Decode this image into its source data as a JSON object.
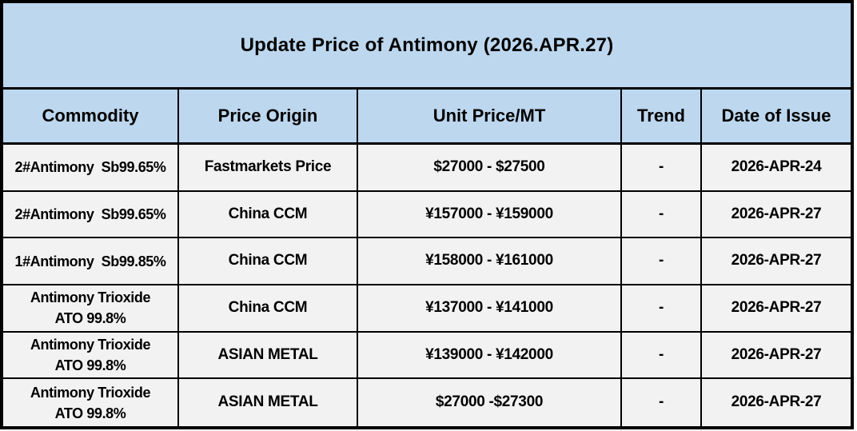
{
  "page_title": "Update Price of Antimony (2026.APR.27)",
  "colors": {
    "header_bg": "#BDD7EE",
    "row_bg": "#F2F2F2",
    "border": "#000000",
    "text": "#000000",
    "page_bg": "#FFFFFF"
  },
  "table": {
    "columns": [
      {
        "label": "Commodity"
      },
      {
        "label": "Price Origin"
      },
      {
        "label": "Unit Price/MT"
      },
      {
        "label": "Trend"
      },
      {
        "label": "Date of Issue"
      }
    ],
    "rows": [
      {
        "commodity": "2#Antimony  Sb99.65%",
        "origin": "Fastmarkets Price",
        "price": "$27000 - $27500",
        "trend": "-",
        "date": "2026-APR-24"
      },
      {
        "commodity": "2#Antimony  Sb99.65%",
        "origin": "China CCM",
        "price": "¥157000 - ¥159000",
        "trend": "-",
        "date": "2026-APR-27"
      },
      {
        "commodity": "1#Antimony  Sb99.85%",
        "origin": "China CCM",
        "price": "¥158000 - ¥161000",
        "trend": "-",
        "date": "2026-APR-27"
      },
      {
        "commodity": "Antimony Trioxide\nATO 99.8%",
        "origin": "China CCM",
        "price": "¥137000 - ¥141000",
        "trend": "-",
        "date": "2026-APR-27"
      },
      {
        "commodity": "Antimony Trioxide\nATO 99.8%",
        "origin": "ASIAN METAL",
        "price": "¥139000 - ¥142000",
        "trend": "-",
        "date": "2026-APR-27"
      },
      {
        "commodity": "Antimony Trioxide\nATO 99.8%",
        "origin": "ASIAN METAL",
        "price": "$27000 -$27300",
        "trend": "-",
        "date": "2026-APR-27"
      }
    ]
  },
  "chart_data": {
    "type": "table",
    "title": "Update Price of Antimony (2026.APR.27)",
    "columns": [
      "Commodity",
      "Price Origin",
      "Unit Price/MT",
      "Trend",
      "Date of Issue"
    ],
    "rows": [
      [
        "2#Antimony Sb99.65%",
        "Fastmarkets Price",
        "$27000 - $27500",
        "-",
        "2026-APR-24"
      ],
      [
        "2#Antimony Sb99.65%",
        "China CCM",
        "¥157000 - ¥159000",
        "-",
        "2026-APR-27"
      ],
      [
        "1#Antimony Sb99.85%",
        "China CCM",
        "¥158000 - ¥161000",
        "-",
        "2026-APR-27"
      ],
      [
        "Antimony Trioxide ATO 99.8%",
        "China CCM",
        "¥137000 - ¥141000",
        "-",
        "2026-APR-27"
      ],
      [
        "Antimony Trioxide ATO 99.8%",
        "ASIAN METAL",
        "¥139000 - ¥142000",
        "-",
        "2026-APR-27"
      ],
      [
        "Antimony Trioxide ATO 99.8%",
        "ASIAN METAL",
        "$27000 -$27300",
        "-",
        "2026-APR-27"
      ]
    ],
    "layout": {
      "title_row_bg": "#BDD7EE",
      "header_row_bg": "#BDD7EE",
      "body_row_bg": "#F2F2F2",
      "grid": true
    }
  }
}
